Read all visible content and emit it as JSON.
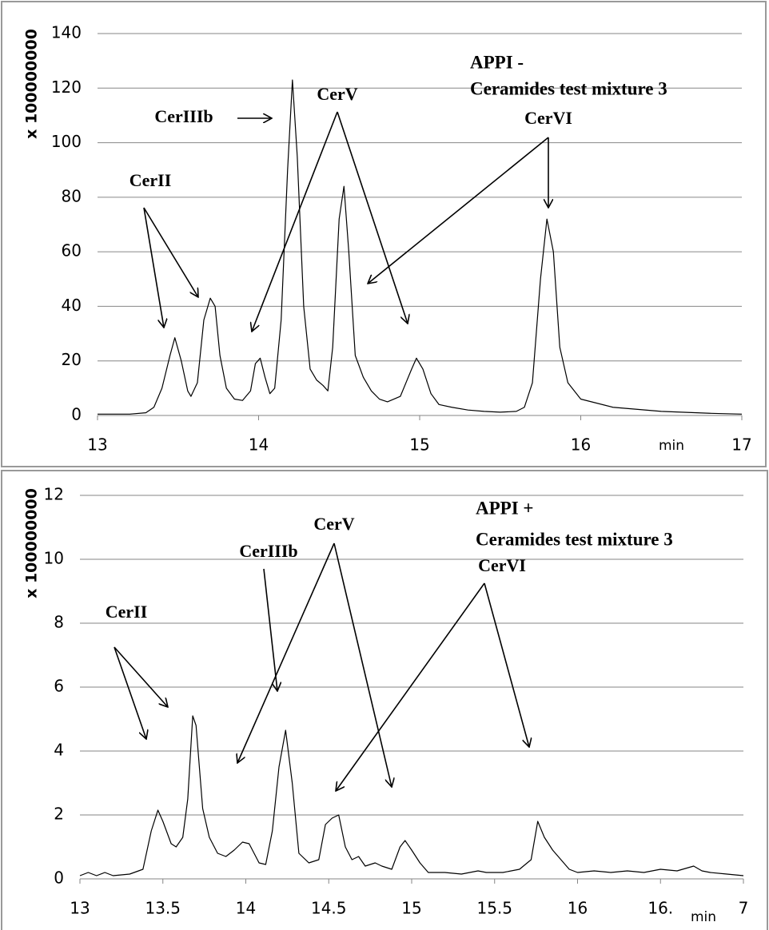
{
  "chart_data": [
    {
      "type": "line",
      "title": "APPI -",
      "subtitle": "Ceramides test mixture 3",
      "ylabel": "x 100000000",
      "xlabel": "min",
      "annotations": [
        "CerII",
        "CerIIIb",
        "CerV",
        "CerVI"
      ],
      "xlim": [
        13,
        17
      ],
      "xticks": [
        13,
        14,
        15,
        16,
        17
      ],
      "ylim": [
        0,
        140
      ],
      "yticks": [
        0,
        20,
        40,
        60,
        80,
        100,
        120,
        140
      ],
      "grid": true,
      "x": [
        13.0,
        13.2,
        13.3,
        13.35,
        13.4,
        13.45,
        13.48,
        13.52,
        13.56,
        13.58,
        13.62,
        13.66,
        13.7,
        13.73,
        13.76,
        13.8,
        13.85,
        13.9,
        13.95,
        13.98,
        14.01,
        14.04,
        14.07,
        14.1,
        14.14,
        14.18,
        14.21,
        14.24,
        14.28,
        14.32,
        14.36,
        14.4,
        14.43,
        14.46,
        14.5,
        14.53,
        14.56,
        14.6,
        14.65,
        14.7,
        14.75,
        14.8,
        14.88,
        14.95,
        14.98,
        15.02,
        15.07,
        15.12,
        15.2,
        15.3,
        15.4,
        15.5,
        15.6,
        15.65,
        15.7,
        15.75,
        15.79,
        15.83,
        15.87,
        15.92,
        16.0,
        16.2,
        16.5,
        16.8,
        17.0
      ],
      "series": [
        {
          "color": "#000000",
          "values": [
            0.5,
            0.5,
            1,
            3,
            10,
            22,
            28.5,
            20,
            9,
            7,
            12,
            35,
            43,
            40,
            22,
            10,
            6,
            5.5,
            9,
            19,
            21,
            14,
            8,
            10,
            35,
            90,
            123,
            95,
            40,
            17,
            13,
            11,
            9,
            25,
            72,
            84,
            60,
            22,
            14,
            9,
            6,
            5,
            7,
            17,
            21,
            17,
            8,
            4,
            3,
            2,
            1.5,
            1.2,
            1.5,
            3,
            12,
            50,
            72,
            60,
            25,
            12,
            6,
            3,
            1.5,
            0.8,
            0.5
          ]
        }
      ]
    },
    {
      "type": "line",
      "title": "APPI +",
      "subtitle": "Ceramides test mixture 3",
      "ylabel": "x 100000000",
      "xlabel": "min",
      "annotations": [
        "CerII",
        "CerIIIb",
        "CerV",
        "CerVI"
      ],
      "xlim": [
        13,
        17
      ],
      "xticks": [
        13,
        13.5,
        14,
        14.5,
        15,
        15.5,
        16,
        {
          "value": 16.5,
          "label": "16."
        },
        {
          "value": 17,
          "label": "7"
        }
      ],
      "ylim": [
        0,
        12
      ],
      "yticks": [
        0,
        2,
        4,
        6,
        8,
        10,
        12
      ],
      "grid": true,
      "x": [
        13.0,
        13.05,
        13.1,
        13.15,
        13.2,
        13.3,
        13.38,
        13.43,
        13.47,
        13.5,
        13.55,
        13.58,
        13.62,
        13.65,
        13.68,
        13.7,
        13.74,
        13.78,
        13.83,
        13.88,
        13.93,
        13.98,
        14.02,
        14.08,
        14.12,
        14.16,
        14.2,
        14.24,
        14.28,
        14.32,
        14.38,
        14.44,
        14.48,
        14.52,
        14.56,
        14.6,
        14.64,
        14.68,
        14.72,
        14.78,
        14.82,
        14.88,
        14.93,
        14.96,
        15.0,
        15.05,
        15.1,
        15.2,
        15.3,
        15.4,
        15.45,
        15.55,
        15.65,
        15.72,
        15.76,
        15.8,
        15.85,
        15.9,
        15.95,
        16.0,
        16.1,
        16.2,
        16.3,
        16.4,
        16.5,
        16.6,
        16.7,
        16.75,
        16.8,
        16.9,
        17.0
      ],
      "series": [
        {
          "color": "#000000",
          "values": [
            0.1,
            0.2,
            0.1,
            0.2,
            0.1,
            0.15,
            0.3,
            1.5,
            2.15,
            1.8,
            1.1,
            1.0,
            1.3,
            2.5,
            5.1,
            4.8,
            2.2,
            1.3,
            0.8,
            0.7,
            0.9,
            1.15,
            1.1,
            0.5,
            0.45,
            1.5,
            3.5,
            4.65,
            3.0,
            0.8,
            0.5,
            0.6,
            1.7,
            1.9,
            2.0,
            1.0,
            0.6,
            0.7,
            0.4,
            0.5,
            0.4,
            0.3,
            1.0,
            1.2,
            0.9,
            0.5,
            0.2,
            0.2,
            0.15,
            0.25,
            0.2,
            0.2,
            0.3,
            0.6,
            1.8,
            1.3,
            0.9,
            0.6,
            0.3,
            0.2,
            0.25,
            0.2,
            0.25,
            0.2,
            0.3,
            0.25,
            0.4,
            0.25,
            0.2,
            0.15,
            0.1
          ]
        }
      ]
    }
  ]
}
